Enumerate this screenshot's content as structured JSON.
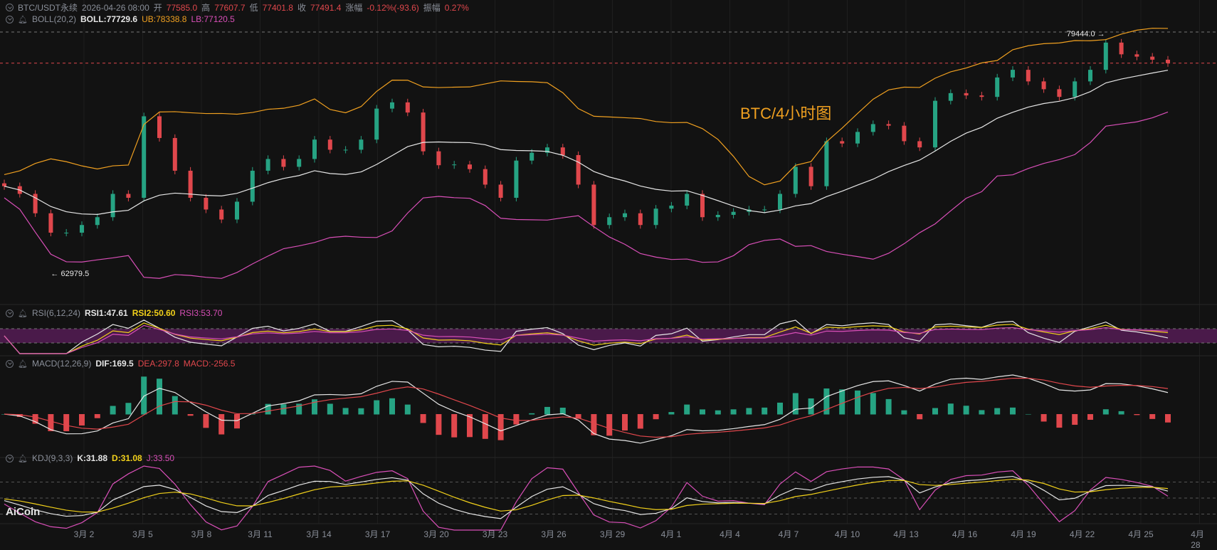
{
  "header": {
    "symbol": "BTC/USDT永续",
    "datetime": "2026-04-26 08:00",
    "open_label": "开",
    "open": "77585.0",
    "high_label": "高",
    "high": "77607.7",
    "low_label": "低",
    "low": "77401.8",
    "close_label": "收",
    "close": "77491.4",
    "change_label": "涨幅",
    "change": "-0.12%(-93.6)",
    "amp_label": "振幅",
    "amp": "0.27%"
  },
  "boll": {
    "name": "BOLL(20,2)",
    "mid": "BOLL:77729.6",
    "ub": "UB:78338.8",
    "lb": "LB:77120.5"
  },
  "rsi": {
    "name": "RSI(6,12,24)",
    "rsi1": "RSI1:47.61",
    "rsi2": "RSI2:50.60",
    "rsi3": "RSI3:53.70"
  },
  "macd": {
    "name": "MACD(12,26,9)",
    "dif": "DIF:169.5",
    "dea": "DEA:297.8",
    "macd": "MACD:-256.5"
  },
  "kdj": {
    "name": "KDJ(9,3,3)",
    "k": "K:31.88",
    "d": "D:31.08",
    "j": "J:33.50"
  },
  "watermark": "BTC/4小时图",
  "logo": "AiCoin",
  "colors": {
    "up": "#26a383",
    "down": "#e0474c",
    "boll_mid": "#e6e6e6",
    "boll_ub": "#f0a020",
    "boll_lb": "#d94fb8",
    "rsi_band": "#4a1a4a"
  },
  "chart_data": {
    "type": "candlestick",
    "max_label": "79444.0",
    "min_label": "62979.5",
    "price_max": 79444.0,
    "price_min": 62979.5,
    "current_price": 77491.4,
    "x_ticks": [
      "3月 2",
      "3月 5",
      "3月 8",
      "3月 11",
      "3月 14",
      "3月 17",
      "3月 20",
      "3月 23",
      "3月 26",
      "3月 29",
      "4月 1",
      "4月 4",
      "4月 7",
      "4月 10",
      "4月 13",
      "4月 16",
      "4月 19",
      "4月 22",
      "4月 25",
      "4月 28"
    ],
    "closes": [
      68990,
      68460,
      67120,
      65780,
      65780,
      66310,
      66850,
      68460,
      68190,
      73820,
      72320,
      70060,
      68190,
      67380,
      66690,
      67920,
      70060,
      70870,
      70330,
      70870,
      72210,
      71510,
      71510,
      72210,
      74350,
      74780,
      74080,
      71400,
      70440,
      70490,
      70170,
      69100,
      68190,
      70760,
      71300,
      71670,
      71140,
      69100,
      66310,
      66850,
      67120,
      66310,
      67440,
      67650,
      68460,
      66850,
      67010,
      67220,
      67380,
      67380,
      68460,
      70330,
      68990,
      72100,
      71940,
      72740,
      73280,
      73170,
      72100,
      71670,
      74890,
      75420,
      75260,
      75160,
      76500,
      77030,
      76230,
      75690,
      75160,
      76230,
      77030,
      78910,
      78100,
      77940,
      77730,
      77490
    ]
  }
}
